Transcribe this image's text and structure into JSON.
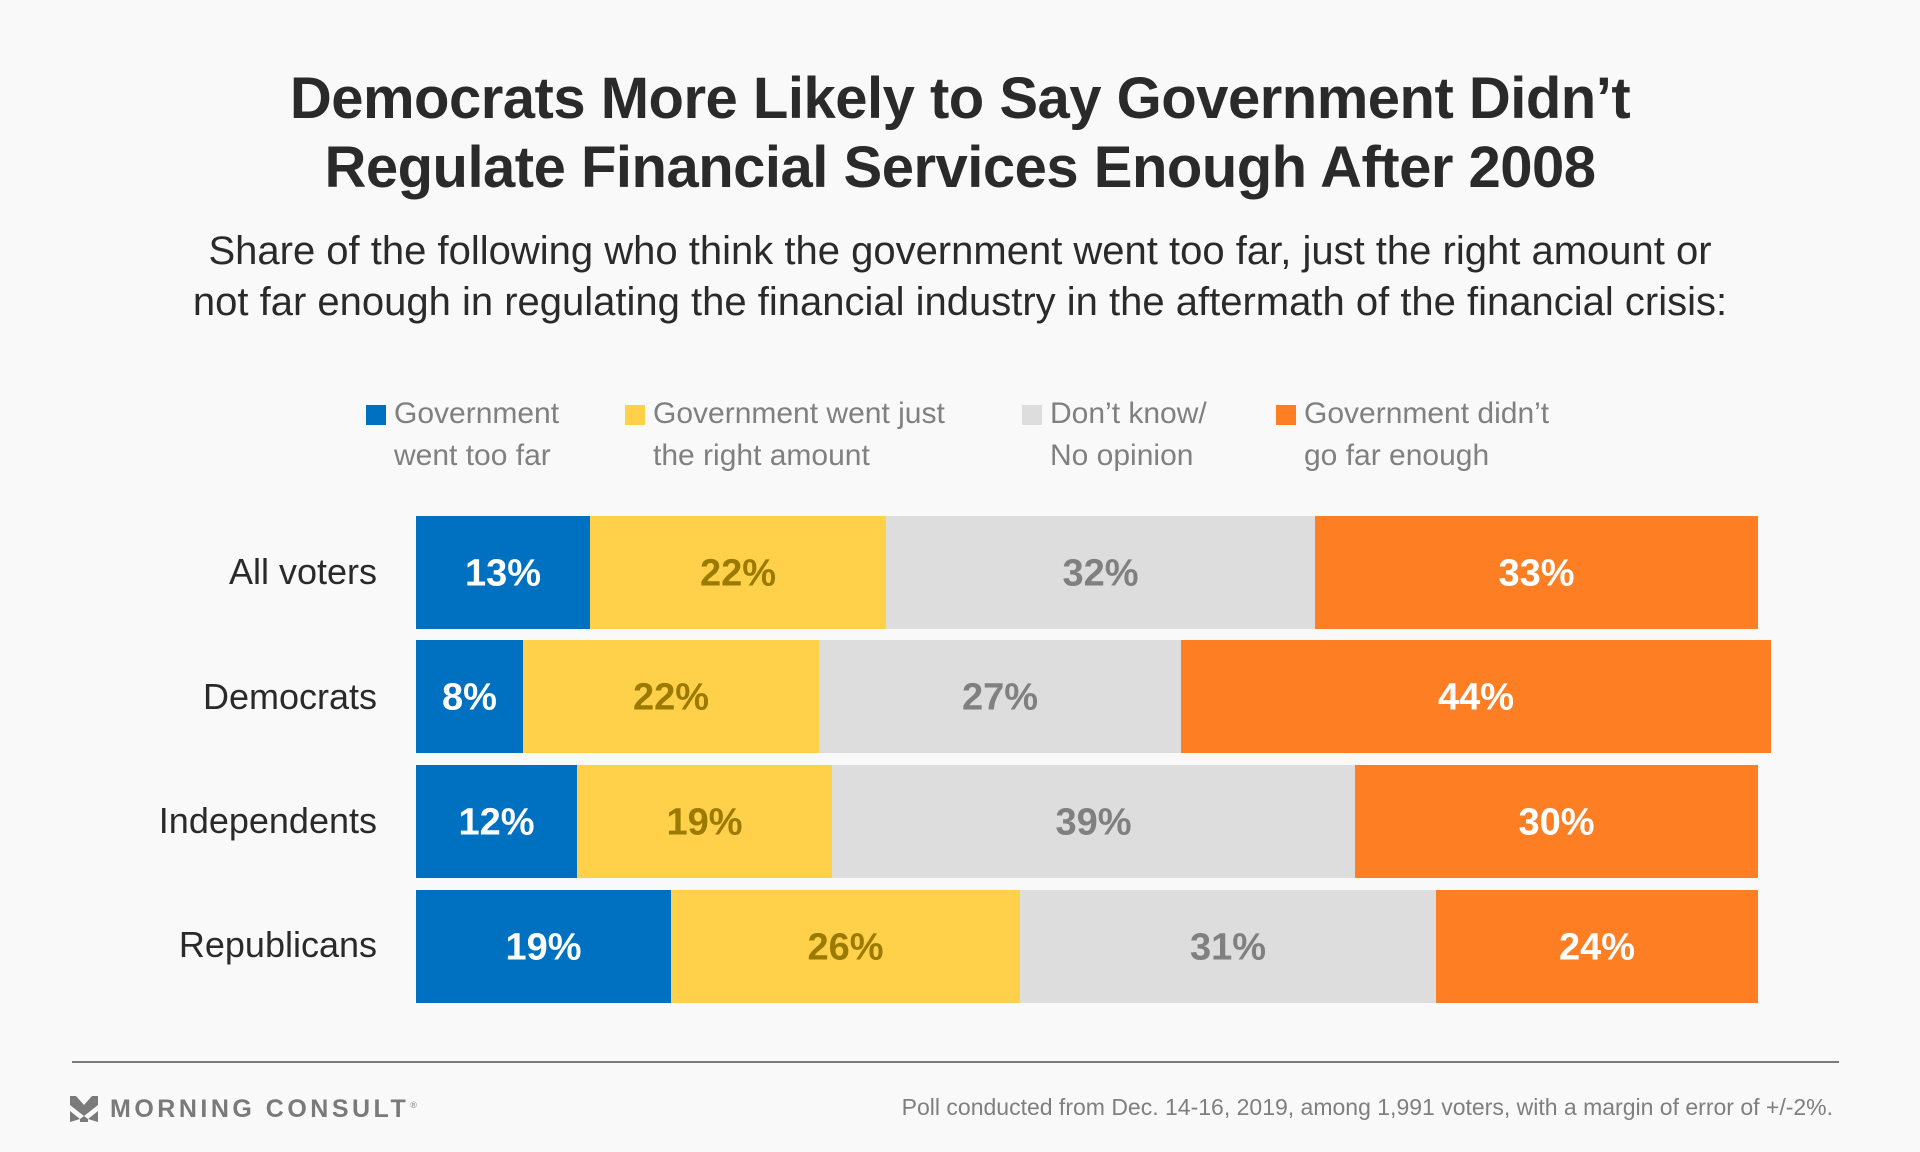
{
  "chart_data": {
    "type": "bar",
    "orientation": "horizontal",
    "stacked": true,
    "percent_stacked": true,
    "title": "Democrats More Likely to Say Government Didn’t Regulate Financial Services Enough After 2008",
    "title_lines": [
      "Democrats More Likely to Say Government Didn’t",
      "Regulate Financial Services Enough After 2008"
    ],
    "subtitle": "Share of the following who think the government went too far, just the right amount or not far enough in regulating the financial industry in the aftermath of the financial crisis:",
    "subtitle_lines": [
      "Share of the following who think the government went too far, just the right amount or",
      "not far enough in regulating the financial industry in the aftermath of the financial crisis:"
    ],
    "categories": [
      "All voters",
      "Democrats",
      "Independents",
      "Republicans"
    ],
    "series": [
      {
        "name": "Government went too far",
        "legend_lines": [
          "Government",
          "went too far"
        ],
        "color": "#0070c0",
        "label_color": "#ffffff",
        "values": [
          13,
          8,
          12,
          19
        ]
      },
      {
        "name": "Government went just the right amount",
        "legend_lines": [
          "Government went just",
          "the right amount"
        ],
        "color": "#ffd04a",
        "label_color": "#9b7a00",
        "values": [
          22,
          22,
          19,
          26
        ]
      },
      {
        "name": "Don’t know/ No opinion",
        "legend_lines": [
          "Don’t know/",
          "No opinion"
        ],
        "color": "#dddddd",
        "label_color": "#808080",
        "values": [
          32,
          27,
          39,
          31
        ]
      },
      {
        "name": "Government didn’t go far enough",
        "legend_lines": [
          "Government didn’t",
          "go far enough"
        ],
        "color": "#fd7e23",
        "label_color": "#ffffff",
        "values": [
          33,
          44,
          30,
          24
        ]
      }
    ],
    "value_suffix": "%",
    "xlabel": "",
    "ylabel": "",
    "xlim": [
      0,
      100
    ],
    "grid": false,
    "legend_position": "top-center"
  },
  "footer": {
    "brand": "MORNING CONSULT",
    "brand_mark": "®",
    "note": "Poll conducted from Dec. 14-16, 2019, among 1,991 voters, with a margin of error of +/-2%."
  }
}
